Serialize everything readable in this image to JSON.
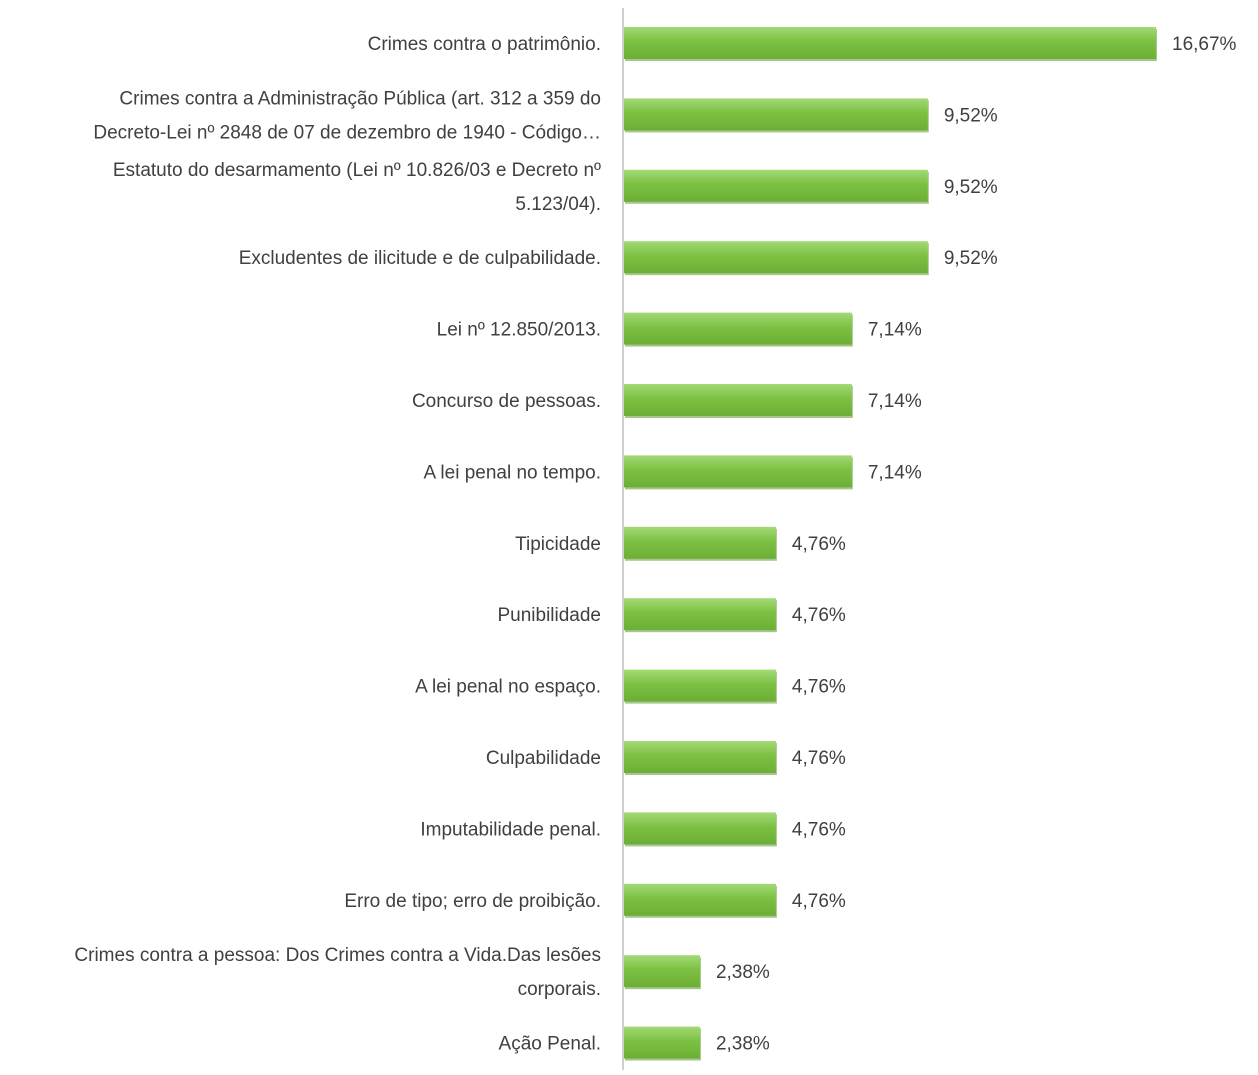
{
  "chart_data": {
    "type": "bar",
    "orientation": "horizontal",
    "title": "",
    "xlabel": "",
    "ylabel": "",
    "grid": false,
    "legend": "none",
    "bar_color": "#7cc142",
    "bar_highlight_color": "#a3d977",
    "bar_shadow_color": "#5e9a2f",
    "axis_color": "#bfbfbf",
    "text_color": "#404040",
    "xlim": [
      0,
      18
    ],
    "categories": [
      [
        "Crimes contra o patrimônio."
      ],
      [
        "Crimes contra a Administração Pública (art. 312 a 359 do",
        "Decreto-Lei nº 2848 de 07 de dezembro de 1940 - Código…"
      ],
      [
        "Estatuto do desarmamento (Lei nº 10.826/03 e Decreto nº",
        "5.123/04)."
      ],
      [
        "Excludentes de ilicitude e de culpabilidade."
      ],
      [
        "Lei nº 12.850/2013."
      ],
      [
        "Concurso de pessoas."
      ],
      [
        "A lei penal no tempo."
      ],
      [
        "Tipicidade"
      ],
      [
        "Punibilidade"
      ],
      [
        "A lei penal no espaço."
      ],
      [
        "Culpabilidade"
      ],
      [
        "Imputabilidade penal."
      ],
      [
        "Erro de tipo; erro de proibição."
      ],
      [
        "Crimes contra a pessoa: Dos Crimes contra a Vida.Das lesões",
        "corporais."
      ],
      [
        "Ação Penal."
      ]
    ],
    "values": [
      16.67,
      9.52,
      9.52,
      9.52,
      7.14,
      7.14,
      7.14,
      4.76,
      4.76,
      4.76,
      4.76,
      4.76,
      4.76,
      2.38,
      2.38
    ],
    "data_labels": [
      "16,67%",
      "9,52%",
      "9,52%",
      "9,52%",
      "7,14%",
      "7,14%",
      "7,14%",
      "4,76%",
      "4,76%",
      "4,76%",
      "4,76%",
      "4,76%",
      "4,76%",
      "2,38%",
      "2,38%"
    ]
  }
}
